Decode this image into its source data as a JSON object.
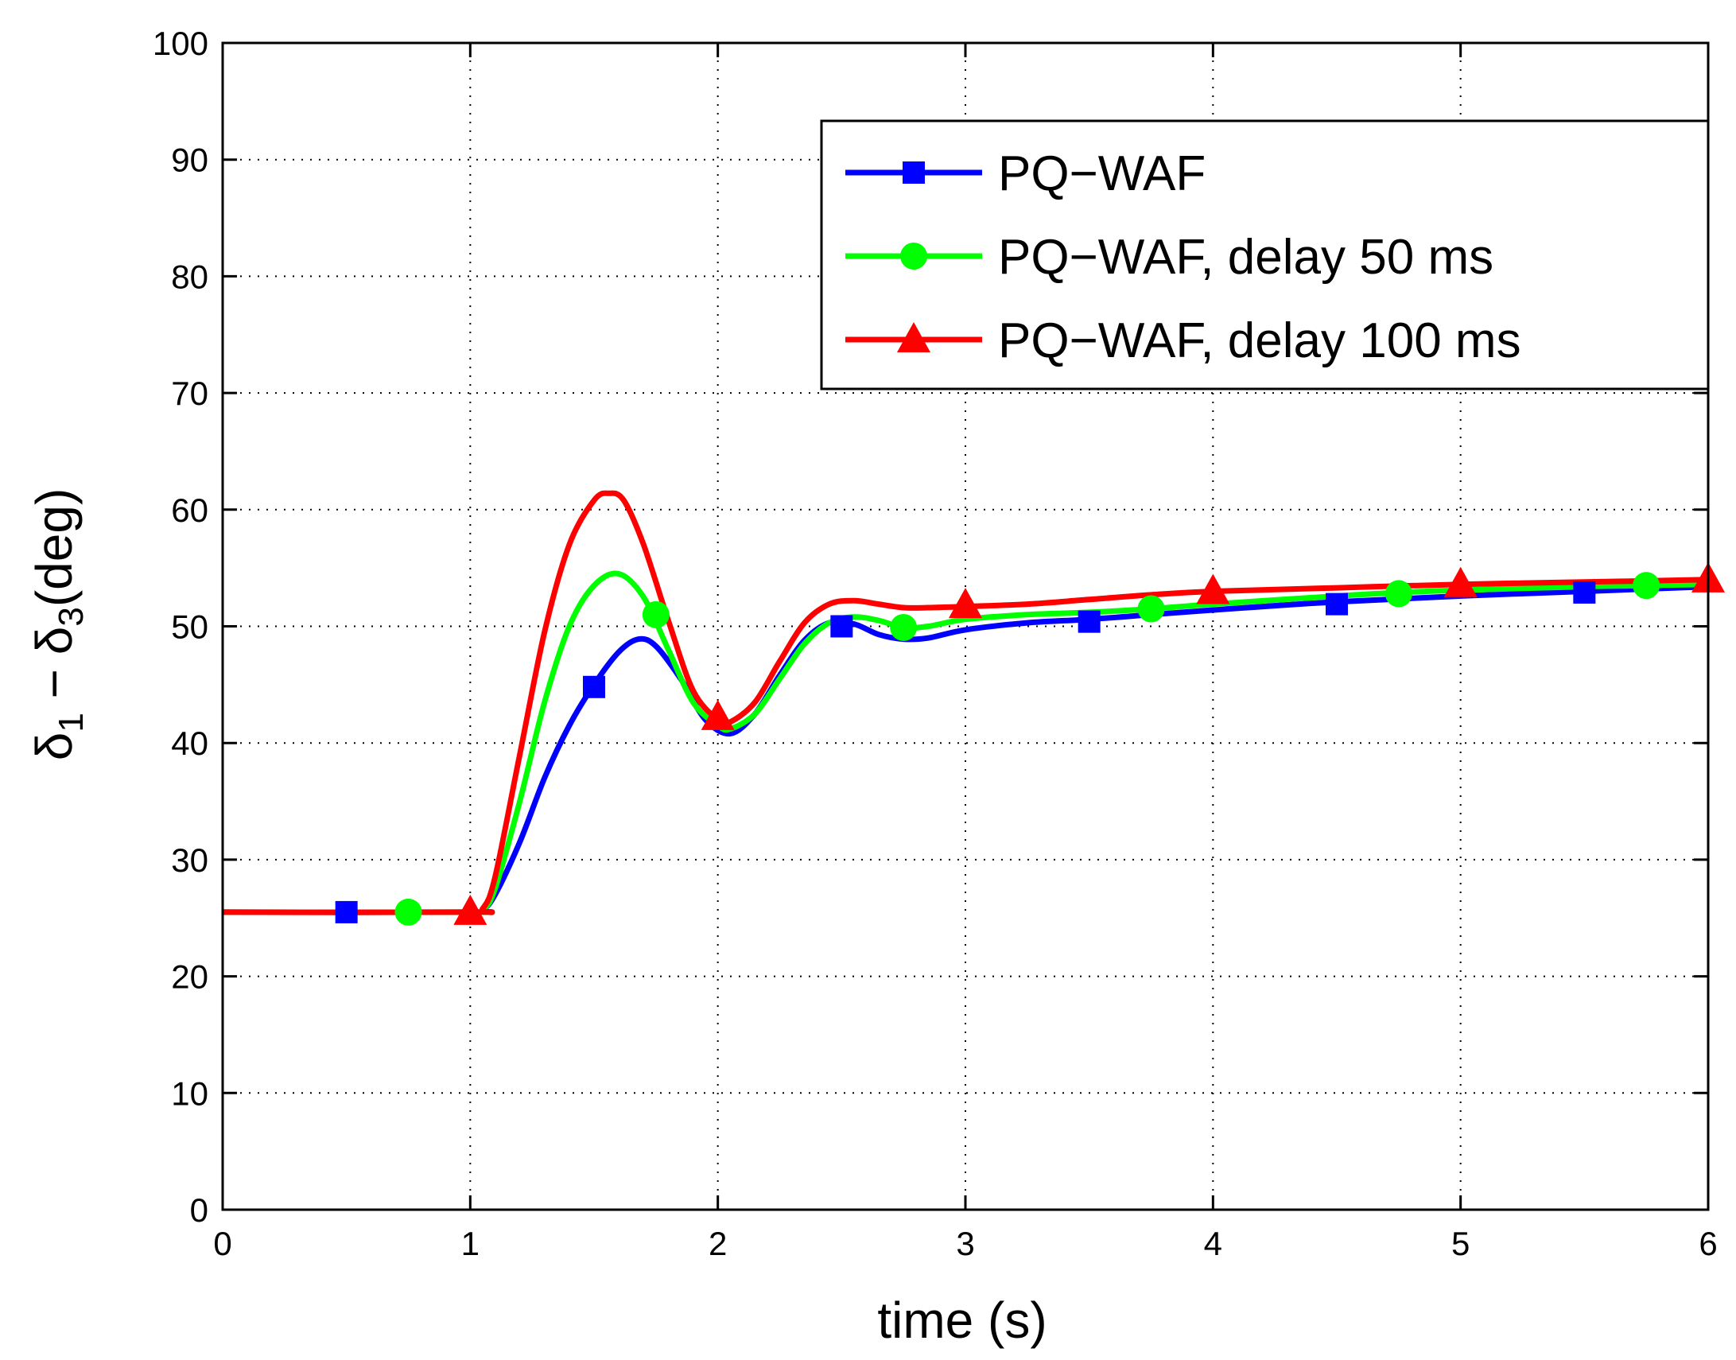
{
  "chart_data": {
    "type": "line",
    "title": "",
    "xlabel": "time (s)",
    "ylabel_parts": [
      "δ",
      "1",
      " − δ",
      "3",
      "(deg)"
    ],
    "xlim": [
      0,
      6
    ],
    "ylim": [
      0,
      100
    ],
    "xticks": [
      0,
      1,
      2,
      3,
      4,
      5,
      6
    ],
    "yticks": [
      0,
      10,
      20,
      30,
      40,
      50,
      60,
      70,
      80,
      90,
      100
    ],
    "grid": true,
    "legend_position": "top-right",
    "series": [
      {
        "name": "PQ−WAF",
        "color": "#0000ff",
        "marker": "square",
        "x": [
          0,
          1.0,
          1.05,
          1.1,
          1.2,
          1.3,
          1.4,
          1.5,
          1.6,
          1.68,
          1.75,
          1.85,
          1.95,
          2.05,
          2.15,
          2.25,
          2.35,
          2.45,
          2.55,
          2.65,
          2.75,
          2.85,
          3.0,
          3.25,
          3.5,
          3.75,
          4.0,
          4.5,
          5.0,
          5.5,
          6.0
        ],
        "y": [
          25.5,
          25.5,
          25.7,
          27.0,
          31.5,
          37.0,
          41.5,
          45.0,
          47.8,
          48.9,
          48.3,
          45.5,
          42.0,
          40.8,
          42.5,
          45.8,
          48.8,
          50.3,
          50.2,
          49.3,
          48.9,
          49.0,
          49.7,
          50.3,
          50.6,
          51.0,
          51.4,
          52.1,
          52.6,
          53.0,
          53.4
        ],
        "marker_x": [
          0.5,
          1.5,
          2.5,
          3.5,
          4.5,
          5.5
        ],
        "marker_y": [
          25.5,
          44.8,
          50.0,
          50.4,
          51.9,
          52.9
        ]
      },
      {
        "name": "PQ−WAF, delay 50 ms",
        "color": "#00ff00",
        "marker": "circle",
        "x": [
          0,
          1.0,
          1.05,
          1.1,
          1.2,
          1.3,
          1.4,
          1.5,
          1.6,
          1.7,
          1.8,
          1.9,
          2.0,
          2.05,
          2.15,
          2.25,
          2.35,
          2.45,
          2.55,
          2.65,
          2.75,
          2.85,
          3.0,
          3.25,
          3.5,
          3.75,
          4.0,
          4.5,
          4.75,
          5.0,
          5.5,
          5.75,
          6.0
        ],
        "y": [
          25.5,
          25.5,
          25.7,
          27.5,
          35.0,
          43.5,
          50.0,
          53.5,
          54.5,
          52.5,
          48.0,
          43.5,
          41.5,
          41.2,
          42.5,
          45.5,
          48.5,
          50.3,
          50.8,
          50.5,
          49.9,
          50.0,
          50.6,
          51.0,
          51.2,
          51.5,
          51.9,
          52.6,
          52.9,
          53.1,
          53.4,
          53.5,
          53.6
        ],
        "marker_x": [
          0.75,
          1.75,
          2.75,
          3.75,
          4.75,
          5.75
        ],
        "marker_y": [
          25.5,
          51.0,
          49.9,
          51.5,
          52.8,
          53.5
        ]
      },
      {
        "name": "PQ−WAF, delay 100 ms",
        "color": "#ff0000",
        "marker": "triangle",
        "x": [
          0,
          1.0,
          1.05,
          1.1,
          1.2,
          1.3,
          1.4,
          1.5,
          1.56,
          1.62,
          1.7,
          1.8,
          1.9,
          2.0,
          2.05,
          2.15,
          2.25,
          2.35,
          2.45,
          2.55,
          2.65,
          2.75,
          2.85,
          3.0,
          3.25,
          3.5,
          3.75,
          4.0,
          4.5,
          5.0,
          5.5,
          6.0
        ],
        "y": [
          25.5,
          25.5,
          25.8,
          28.5,
          39.0,
          49.5,
          57.0,
          60.8,
          61.4,
          60.8,
          57.0,
          50.5,
          44.5,
          42.0,
          41.8,
          43.5,
          47.0,
          50.3,
          51.9,
          52.2,
          51.9,
          51.6,
          51.6,
          51.7,
          51.9,
          52.3,
          52.7,
          53.0,
          53.3,
          53.6,
          53.8,
          54.0
        ],
        "marker_x": [
          1.0,
          2.0,
          3.0,
          4.0,
          5.0,
          6.0
        ],
        "marker_y": [
          25.5,
          42.2,
          51.8,
          53.0,
          53.6,
          54.0
        ]
      }
    ]
  }
}
